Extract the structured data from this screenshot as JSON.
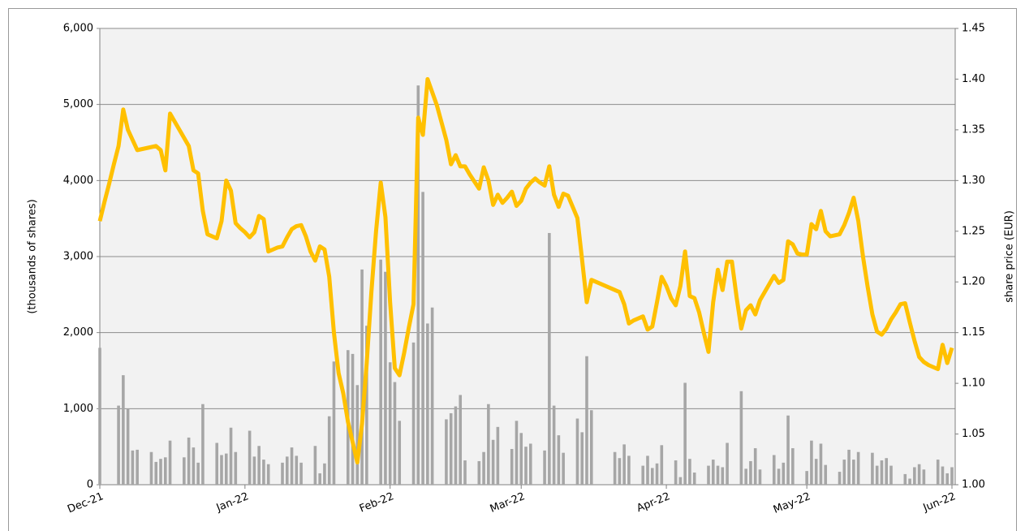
{
  "chart_data": {
    "type": "combo",
    "ylabel": "(thousands of shares)",
    "y2label": "share price (EUR)",
    "ylim": [
      0,
      6000
    ],
    "yticks": [
      0,
      {
        "value": 1000,
        "label": "1,000"
      },
      {
        "value": 2000,
        "label": "2,000"
      },
      {
        "value": 3000,
        "label": "3,000"
      },
      {
        "value": 4000,
        "label": "4,000"
      },
      {
        "value": 5000,
        "label": "5,000"
      },
      {
        "value": 6000,
        "label": "6,000"
      }
    ],
    "y2lim": [
      1,
      1.45
    ],
    "y2ticks": [
      {
        "value": 1,
        "label": "1.00"
      },
      1.05,
      {
        "value": 1.1,
        "label": "1.10"
      },
      1.15,
      {
        "value": 1.2,
        "label": "1.20"
      },
      1.25,
      {
        "value": 1.3,
        "label": "1.30"
      },
      1.35,
      {
        "value": 1.4,
        "label": "1.40"
      },
      1.45
    ],
    "grid": true,
    "categories": [
      "Dec-21",
      null,
      null,
      null,
      null,
      null,
      null,
      null,
      null,
      null,
      null,
      null,
      null,
      null,
      null,
      null,
      null,
      null,
      null,
      null,
      null,
      null,
      null,
      null,
      null,
      null,
      null,
      null,
      null,
      null,
      null,
      "Jan-22",
      null,
      null,
      null,
      null,
      null,
      null,
      null,
      null,
      null,
      null,
      null,
      null,
      null,
      null,
      null,
      null,
      null,
      null,
      null,
      null,
      null,
      null,
      null,
      null,
      null,
      null,
      null,
      null,
      null,
      null,
      "Feb-22",
      null,
      null,
      null,
      null,
      null,
      null,
      null,
      null,
      null,
      null,
      null,
      null,
      null,
      null,
      null,
      null,
      null,
      null,
      null,
      null,
      null,
      null,
      null,
      null,
      null,
      null,
      null,
      "Mar-22",
      null,
      null,
      null,
      null,
      null,
      null,
      null,
      null,
      null,
      null,
      null,
      null,
      null,
      null,
      null,
      null,
      null,
      null,
      null,
      null,
      null,
      null,
      null,
      null,
      null,
      null,
      null,
      null,
      null,
      null,
      "Apr-22",
      null,
      null,
      null,
      null,
      null,
      null,
      null,
      null,
      null,
      null,
      null,
      null,
      null,
      null,
      null,
      null,
      null,
      null,
      null,
      null,
      null,
      null,
      null,
      null,
      null,
      null,
      null,
      null,
      null,
      "May-22",
      null,
      null,
      null,
      null,
      null,
      null,
      null,
      null,
      null,
      null,
      null,
      null,
      null,
      null,
      null,
      null,
      null,
      null,
      null,
      null,
      null,
      null,
      null,
      null,
      null,
      null,
      null,
      null,
      null,
      null,
      "Jun-22"
    ],
    "series": [
      {
        "type": "bar",
        "color": "#a6a6a6",
        "values": [
          1800,
          null,
          null,
          null,
          1040,
          1440,
          1000,
          450,
          460,
          null,
          null,
          430,
          300,
          340,
          360,
          580,
          null,
          null,
          360,
          620,
          490,
          290,
          1060,
          null,
          null,
          550,
          390,
          410,
          750,
          430,
          null,
          null,
          710,
          370,
          510,
          330,
          270,
          null,
          null,
          290,
          370,
          490,
          380,
          290,
          null,
          null,
          510,
          150,
          280,
          900,
          1620,
          null,
          null,
          1770,
          1720,
          1310,
          2830,
          2090,
          null,
          null,
          2960,
          2800,
          1610,
          1350,
          840,
          null,
          null,
          1870,
          5250,
          3850,
          2120,
          2330,
          null,
          null,
          860,
          940,
          1030,
          1180,
          320,
          null,
          null,
          310,
          430,
          1060,
          590,
          760,
          null,
          null,
          470,
          840,
          680,
          500,
          540,
          null,
          null,
          450,
          3310,
          1040,
          650,
          420,
          null,
          null,
          870,
          690,
          1690,
          980,
          null,
          null,
          null,
          null,
          430,
          350,
          530,
          380,
          null,
          null,
          250,
          380,
          220,
          280,
          520,
          null,
          null,
          320,
          100,
          1340,
          340,
          160,
          null,
          null,
          250,
          330,
          250,
          230,
          550,
          null,
          null,
          1230,
          210,
          310,
          480,
          200,
          null,
          null,
          390,
          210,
          290,
          910,
          480,
          null,
          null,
          180,
          580,
          340,
          540,
          260,
          null,
          null,
          170,
          330,
          460,
          330,
          430,
          null,
          null,
          420,
          250,
          320,
          350,
          250,
          null,
          null,
          140,
          80,
          230,
          270,
          200,
          null,
          null,
          330,
          240,
          150,
          230
        ]
      },
      {
        "type": "line",
        "axis": "y2",
        "color": "#ffc000",
        "values": [
          1.26,
          1.279,
          1.297,
          1.316,
          1.334,
          1.37,
          1.35,
          1.34,
          1.33,
          1.331,
          1.332,
          1.333,
          1.334,
          1.33,
          1.31,
          1.366,
          1.358,
          1.35,
          1.342,
          1.334,
          1.31,
          1.307,
          1.27,
          1.247,
          1.245,
          1.243,
          1.26,
          1.3,
          1.29,
          1.258,
          1.253,
          1.249,
          1.244,
          1.249,
          1.265,
          1.262,
          1.23,
          1.232,
          1.234,
          1.235,
          1.244,
          1.252,
          1.255,
          1.256,
          1.245,
          1.23,
          1.221,
          1.235,
          1.232,
          1.205,
          1.15,
          1.11,
          1.09,
          1.062,
          1.042,
          1.022,
          1.06,
          1.12,
          1.19,
          1.25,
          1.298,
          1.264,
          1.18,
          1.115,
          1.108,
          1.13,
          1.155,
          1.178,
          1.362,
          1.345,
          1.4,
          1.387,
          1.374,
          1.357,
          1.34,
          1.316,
          1.325,
          1.314,
          1.314,
          1.306,
          1.299,
          1.292,
          1.313,
          1.3,
          1.276,
          1.286,
          1.278,
          1.283,
          1.289,
          1.275,
          1.28,
          1.292,
          1.298,
          1.302,
          1.298,
          1.295,
          1.314,
          1.286,
          1.274,
          1.287,
          1.285,
          1.274,
          1.263,
          1.222,
          1.18,
          1.202,
          1.2,
          1.198,
          1.196,
          1.194,
          1.192,
          1.19,
          1.178,
          1.159,
          1.162,
          1.164,
          1.166,
          1.153,
          1.156,
          1.18,
          1.205,
          1.196,
          1.184,
          1.177,
          1.196,
          1.23,
          1.186,
          1.184,
          1.17,
          1.15,
          1.131,
          1.18,
          1.212,
          1.192,
          1.22,
          1.22,
          1.185,
          1.154,
          1.172,
          1.177,
          1.168,
          1.182,
          1.19,
          1.198,
          1.206,
          1.199,
          1.202,
          1.24,
          1.237,
          1.228,
          1.227,
          1.227,
          1.257,
          1.252,
          1.27,
          1.25,
          1.245,
          1.246,
          1.247,
          1.256,
          1.268,
          1.283,
          1.26,
          1.225,
          1.195,
          1.168,
          1.151,
          1.148,
          1.154,
          1.163,
          1.17,
          1.178,
          1.179,
          1.16,
          1.142,
          1.126,
          1.121,
          1.118,
          1.116,
          1.114,
          1.138,
          1.12,
          1.135
        ]
      }
    ]
  }
}
